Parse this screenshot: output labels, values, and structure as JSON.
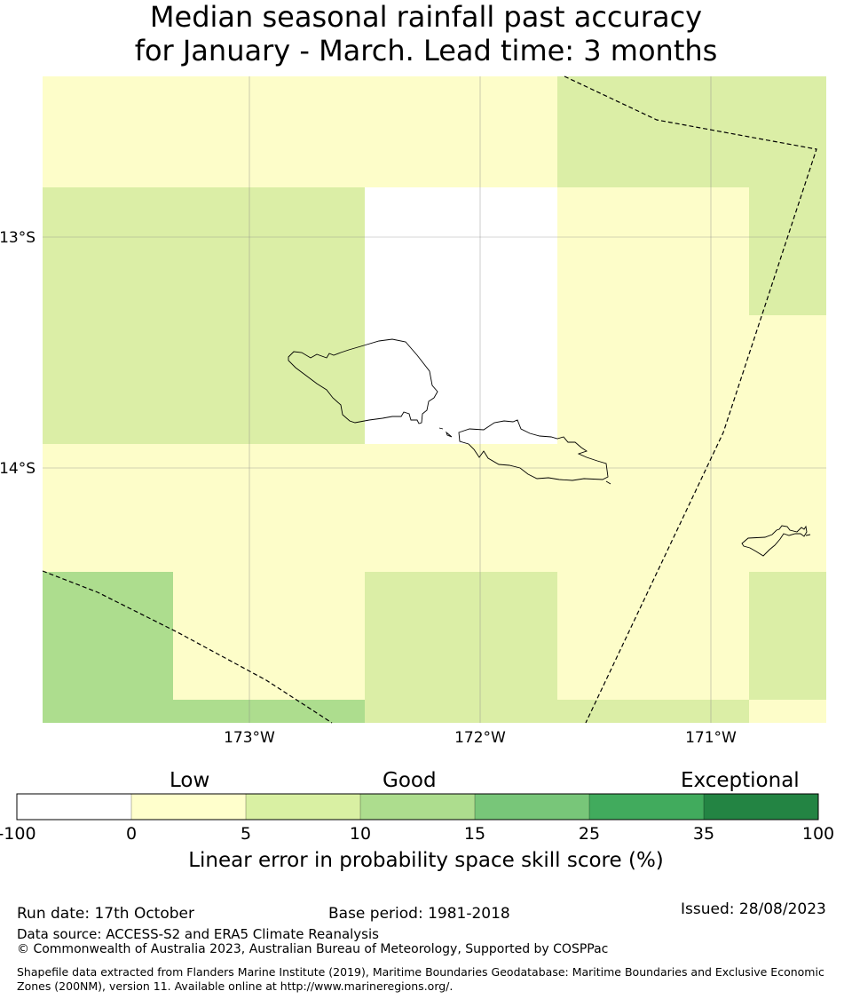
{
  "title_line1": "Median seasonal rainfall past accuracy",
  "title_line2": "for January - March. Lead time: 3 months",
  "map": {
    "lon_labels": [
      "173°W",
      "172°W",
      "171°W"
    ],
    "lat_labels": [
      "13°S",
      "14°S"
    ],
    "cell_colors": {
      "low": "#fdfdc9",
      "good_low": "#dbeea6",
      "good": "#addd8e",
      "none": "#ffffff"
    }
  },
  "colorbar": {
    "category_labels": [
      "Low",
      "Good",
      "Exceptional"
    ],
    "tick_labels": [
      "-100",
      "0",
      "5",
      "10",
      "15",
      "25",
      "35",
      "100"
    ],
    "colors": [
      "#ffffff",
      "#ffffcc",
      "#d9f0a3",
      "#addd8e",
      "#78c679",
      "#41ab5d",
      "#238443"
    ],
    "title": "Linear error in probability space skill score (%)"
  },
  "footer": {
    "run_date": "Run date: 17th October",
    "base_period": "Base period: 1981-2018",
    "issued": "Issued: 28/08/2023",
    "data_source": "Data source: ACCESS-S2 and ERA5 Climate Reanalysis",
    "copyright": "© Commonwealth of Australia 2023, Australian Bureau of Meteorology, Supported by COSPPac",
    "shapefile": "Shapefile data extracted from Flanders Marine Institute (2019), Maritime Boundaries Geodatabase: Maritime Boundaries and Exclusive Economic Zones (200NM), version 11. Available online at http://www.marineregions.org/."
  }
}
